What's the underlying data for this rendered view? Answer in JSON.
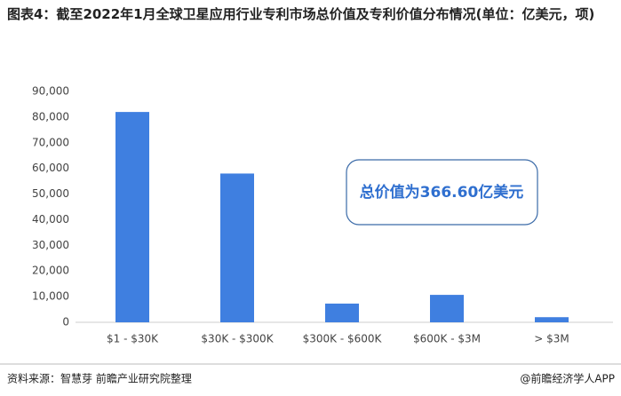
{
  "chart_data": {
    "type": "bar",
    "title": "图表4：截至2022年1月全球卫星应用行业专利市场总价值及专利价值分布情况(单位：亿美元，项)",
    "categories": [
      "$1 - $30K",
      "$30K - $300K",
      "$300K - $600K",
      "$600K - $3M",
      "> $3M"
    ],
    "values": [
      82000,
      58000,
      7300,
      10700,
      2000
    ],
    "color": "#3f7fe0",
    "ylim": [
      0,
      90000
    ],
    "yticks": [
      0,
      {
        "value": 10000,
        "label": "10,000"
      },
      {
        "value": 20000,
        "label": "20,000"
      },
      {
        "value": 30000,
        "label": "30,000"
      },
      {
        "value": 40000,
        "label": "40,000"
      },
      {
        "value": 50000,
        "label": "50,000"
      },
      {
        "value": 60000,
        "label": "60,000"
      },
      {
        "value": 70000,
        "label": "70,000"
      },
      {
        "value": 80000,
        "label": "80,000"
      },
      {
        "value": 90000,
        "label": "90,000"
      }
    ],
    "grid": false,
    "annotation": "总价值为366.60亿美元",
    "source": "资料来源：智慧芽 前瞻产业研究院整理",
    "credit": "@前瞻经济学人APP"
  }
}
